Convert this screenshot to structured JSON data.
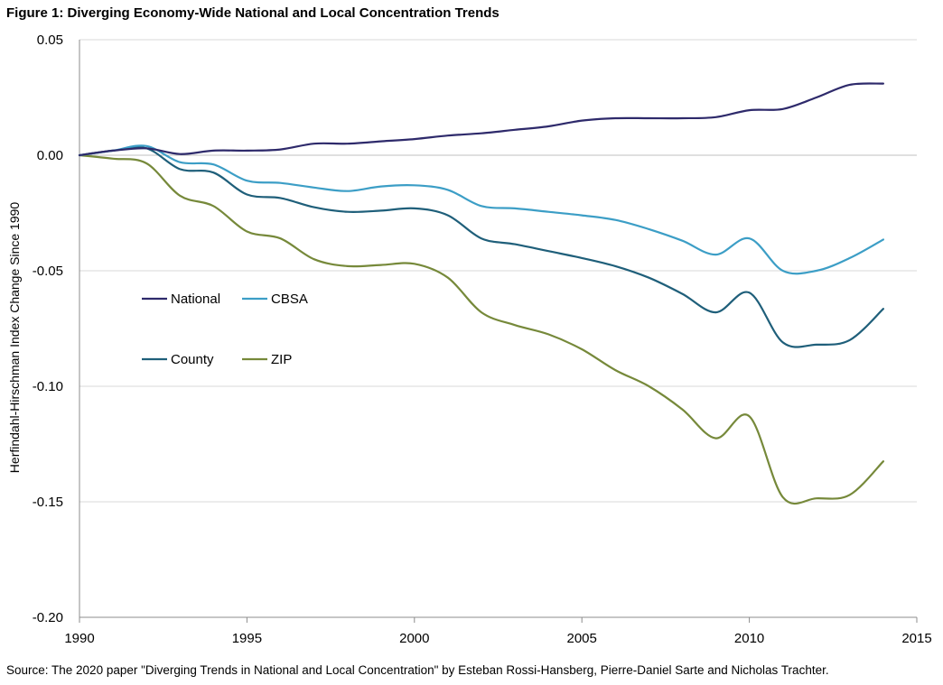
{
  "figure_title": "Figure 1: Diverging Economy-Wide National and Local Concentration Trends",
  "source_note": "Source: The 2020  paper \"Diverging Trends in National and Local Concentration\" by Esteban Rossi-Hansberg, Pierre-Daniel Sarte and Nicholas Trachter.",
  "chart_data": {
    "type": "line",
    "title": "Figure 1: Diverging Economy-Wide National and Local Concentration Trends",
    "xlabel": "",
    "ylabel": "Herfindahl-Hirschman Index Change Since 1990",
    "xlim": [
      1990,
      2015
    ],
    "ylim": [
      -0.2,
      0.05
    ],
    "x_ticks": [
      1990,
      1995,
      2000,
      2005,
      2010,
      2015
    ],
    "x_tick_labels": [
      "1990",
      "1995",
      "2000",
      "2005",
      "2010",
      "2015"
    ],
    "y_ticks": [
      0.05,
      0.0,
      -0.05,
      -0.1,
      -0.15,
      -0.2
    ],
    "y_tick_labels": [
      "0.05",
      "0.00",
      "-0.05",
      "-0.10",
      "-0.15",
      "-0.20"
    ],
    "grid": "horizontal",
    "legend_position": "left-middle",
    "x": [
      1990,
      1991,
      1992,
      1993,
      1994,
      1995,
      1996,
      1997,
      1998,
      1999,
      2000,
      2001,
      2002,
      2003,
      2004,
      2005,
      2006,
      2007,
      2008,
      2009,
      2010,
      2011,
      2012,
      2013,
      2014
    ],
    "series": [
      {
        "name": "National",
        "color": "#2e2a6b",
        "values": [
          0.0,
          0.002,
          0.003,
          0.0005,
          0.002,
          0.002,
          0.0025,
          0.005,
          0.005,
          0.006,
          0.007,
          0.0085,
          0.0095,
          0.011,
          0.0125,
          0.015,
          0.016,
          0.016,
          0.016,
          0.0165,
          0.0195,
          0.02,
          0.025,
          0.0305,
          0.031
        ]
      },
      {
        "name": "CBSA",
        "color": "#3c9ec6",
        "values": [
          0.0,
          0.002,
          0.004,
          -0.003,
          -0.004,
          -0.011,
          -0.012,
          -0.014,
          -0.0155,
          -0.0135,
          -0.013,
          -0.015,
          -0.022,
          -0.023,
          -0.0245,
          -0.026,
          -0.028,
          -0.032,
          -0.037,
          -0.043,
          -0.036,
          -0.05,
          -0.05,
          -0.0445,
          -0.0365
        ]
      },
      {
        "name": "County",
        "color": "#1f5f7a",
        "values": [
          0.0,
          0.002,
          0.003,
          -0.006,
          -0.0075,
          -0.017,
          -0.0185,
          -0.0225,
          -0.0245,
          -0.024,
          -0.023,
          -0.026,
          -0.036,
          -0.0385,
          -0.0415,
          -0.0445,
          -0.048,
          -0.053,
          -0.06,
          -0.068,
          -0.0595,
          -0.081,
          -0.082,
          -0.08,
          -0.0665
        ]
      },
      {
        "name": "ZIP",
        "color": "#76893a",
        "values": [
          0.0,
          -0.0015,
          -0.0035,
          -0.0175,
          -0.022,
          -0.033,
          -0.036,
          -0.045,
          -0.048,
          -0.0475,
          -0.047,
          -0.053,
          -0.068,
          -0.0735,
          -0.0775,
          -0.084,
          -0.093,
          -0.1,
          -0.11,
          -0.1225,
          -0.113,
          -0.148,
          -0.1485,
          -0.147,
          -0.1325
        ]
      }
    ]
  }
}
